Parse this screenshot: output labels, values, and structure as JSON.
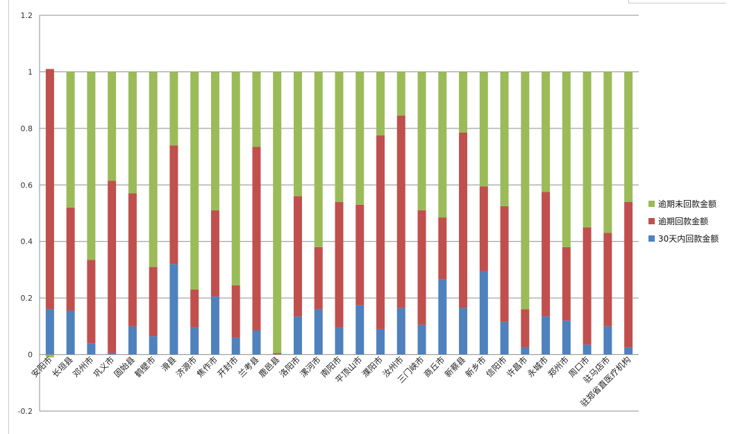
{
  "chart_data": {
    "type": "bar",
    "stacked": true,
    "ylim": [
      -0.2,
      1.2
    ],
    "yticks": [
      "1.2",
      "1",
      "0.8",
      "0.6",
      "0.4",
      "0.2",
      "0",
      "-0.2"
    ],
    "grid": true,
    "legend_position": "right",
    "categories": [
      "安阳市",
      "长垣县",
      "邓州市",
      "巩义市",
      "固始县",
      "鹤壁市",
      "滑县",
      "济源市",
      "焦作市",
      "开封市",
      "兰考县",
      "鹿邑县",
      "洛阳市",
      "漯河市",
      "南阳市",
      "平顶山市",
      "濮阳市",
      "汝州市",
      "三门峡市",
      "商丘市",
      "新蔡县",
      "新乡市",
      "信阳市",
      "许昌市",
      "永城市",
      "郑州市",
      "周口市",
      "驻马店市",
      "驻郑省直医疗机构"
    ],
    "series": [
      {
        "name": "30天内回款金额",
        "color": "#4F81BD",
        "values": [
          0.16,
          0.155,
          0.04,
          0.005,
          0.1,
          0.065,
          0.32,
          0.095,
          0.205,
          0.06,
          0.085,
          0.0,
          0.135,
          0.16,
          0.095,
          0.175,
          0.09,
          0.165,
          0.105,
          0.265,
          0.165,
          0.295,
          0.115,
          0.025,
          0.135,
          0.12,
          0.035,
          0.1,
          0.025
        ]
      },
      {
        "name": "逾期回款金额",
        "color": "#C0504D",
        "values": [
          0.85,
          0.365,
          0.295,
          0.61,
          0.47,
          0.245,
          0.42,
          0.135,
          0.305,
          0.185,
          0.65,
          0.005,
          0.425,
          0.22,
          0.445,
          0.355,
          0.685,
          0.68,
          0.405,
          0.22,
          0.62,
          0.3,
          0.41,
          0.135,
          0.44,
          0.26,
          0.415,
          0.33,
          0.515
        ]
      },
      {
        "name": "逾期未回款金额",
        "color": "#9BBB59",
        "values": [
          -0.01,
          0.48,
          0.665,
          0.385,
          0.43,
          0.69,
          0.26,
          0.77,
          0.49,
          0.755,
          0.265,
          0.995,
          0.44,
          0.62,
          0.46,
          0.47,
          0.225,
          0.155,
          0.49,
          0.515,
          0.215,
          0.405,
          0.475,
          0.84,
          0.425,
          0.62,
          0.55,
          0.57,
          0.46
        ]
      }
    ]
  }
}
